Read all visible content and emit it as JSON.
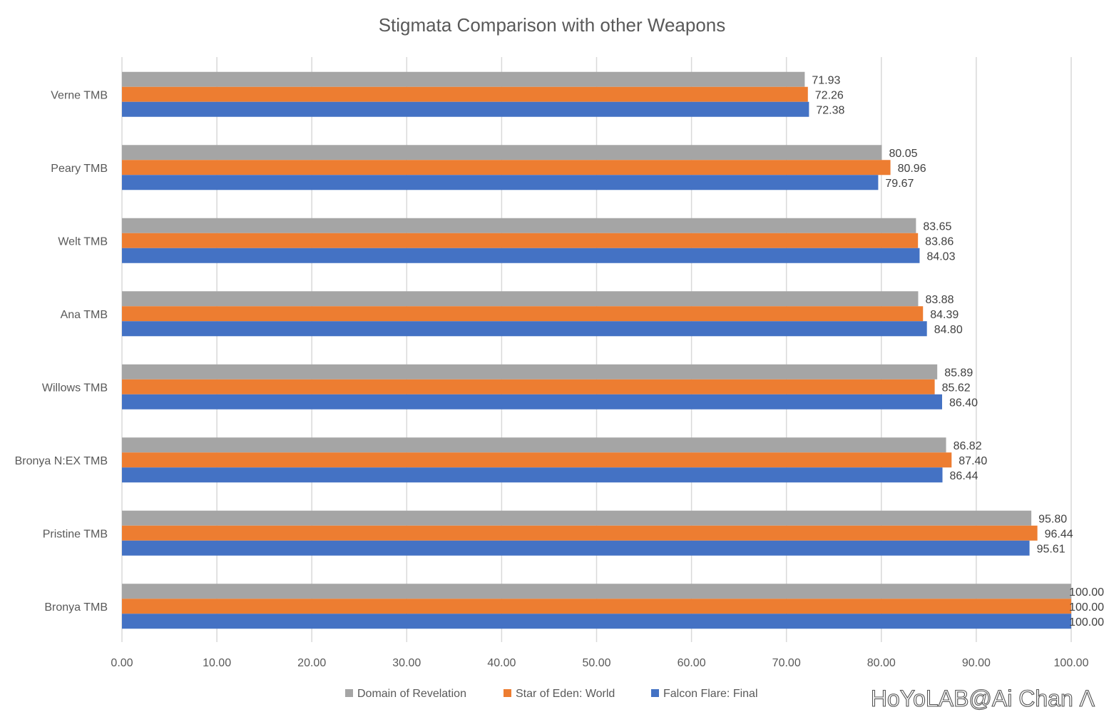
{
  "chart_data": {
    "type": "bar",
    "orientation": "horizontal",
    "title": "Stigmata Comparison with other Weapons",
    "categories": [
      "Verne TMB",
      "Peary TMB",
      "Welt TMB",
      "Ana TMB",
      "Willows TMB",
      "Bronya N:EX TMB",
      "Pristine TMB",
      "Bronya TMB"
    ],
    "series": [
      {
        "name": "Domain of Revelation",
        "color": "#a5a5a5",
        "values": [
          71.93,
          80.05,
          83.65,
          83.88,
          85.89,
          86.82,
          95.8,
          100.0
        ]
      },
      {
        "name": "Star of Eden: World",
        "color": "#ed7d31",
        "values": [
          72.26,
          80.96,
          83.86,
          84.39,
          85.62,
          87.4,
          96.44,
          100.0
        ]
      },
      {
        "name": "Falcon Flare: Final",
        "color": "#4472c4",
        "values": [
          72.38,
          79.67,
          84.03,
          84.8,
          86.4,
          86.44,
          95.61,
          100.0
        ]
      }
    ],
    "xticks": [
      "0.00",
      "10.00",
      "20.00",
      "30.00",
      "40.00",
      "50.00",
      "60.00",
      "70.00",
      "80.00",
      "90.00",
      "100.00"
    ],
    "xlim": [
      0,
      100
    ],
    "grid": "vertical",
    "legend": "bottom",
    "data_labels": true
  },
  "watermark": "HoYoLAB@Ai Chan Λ"
}
